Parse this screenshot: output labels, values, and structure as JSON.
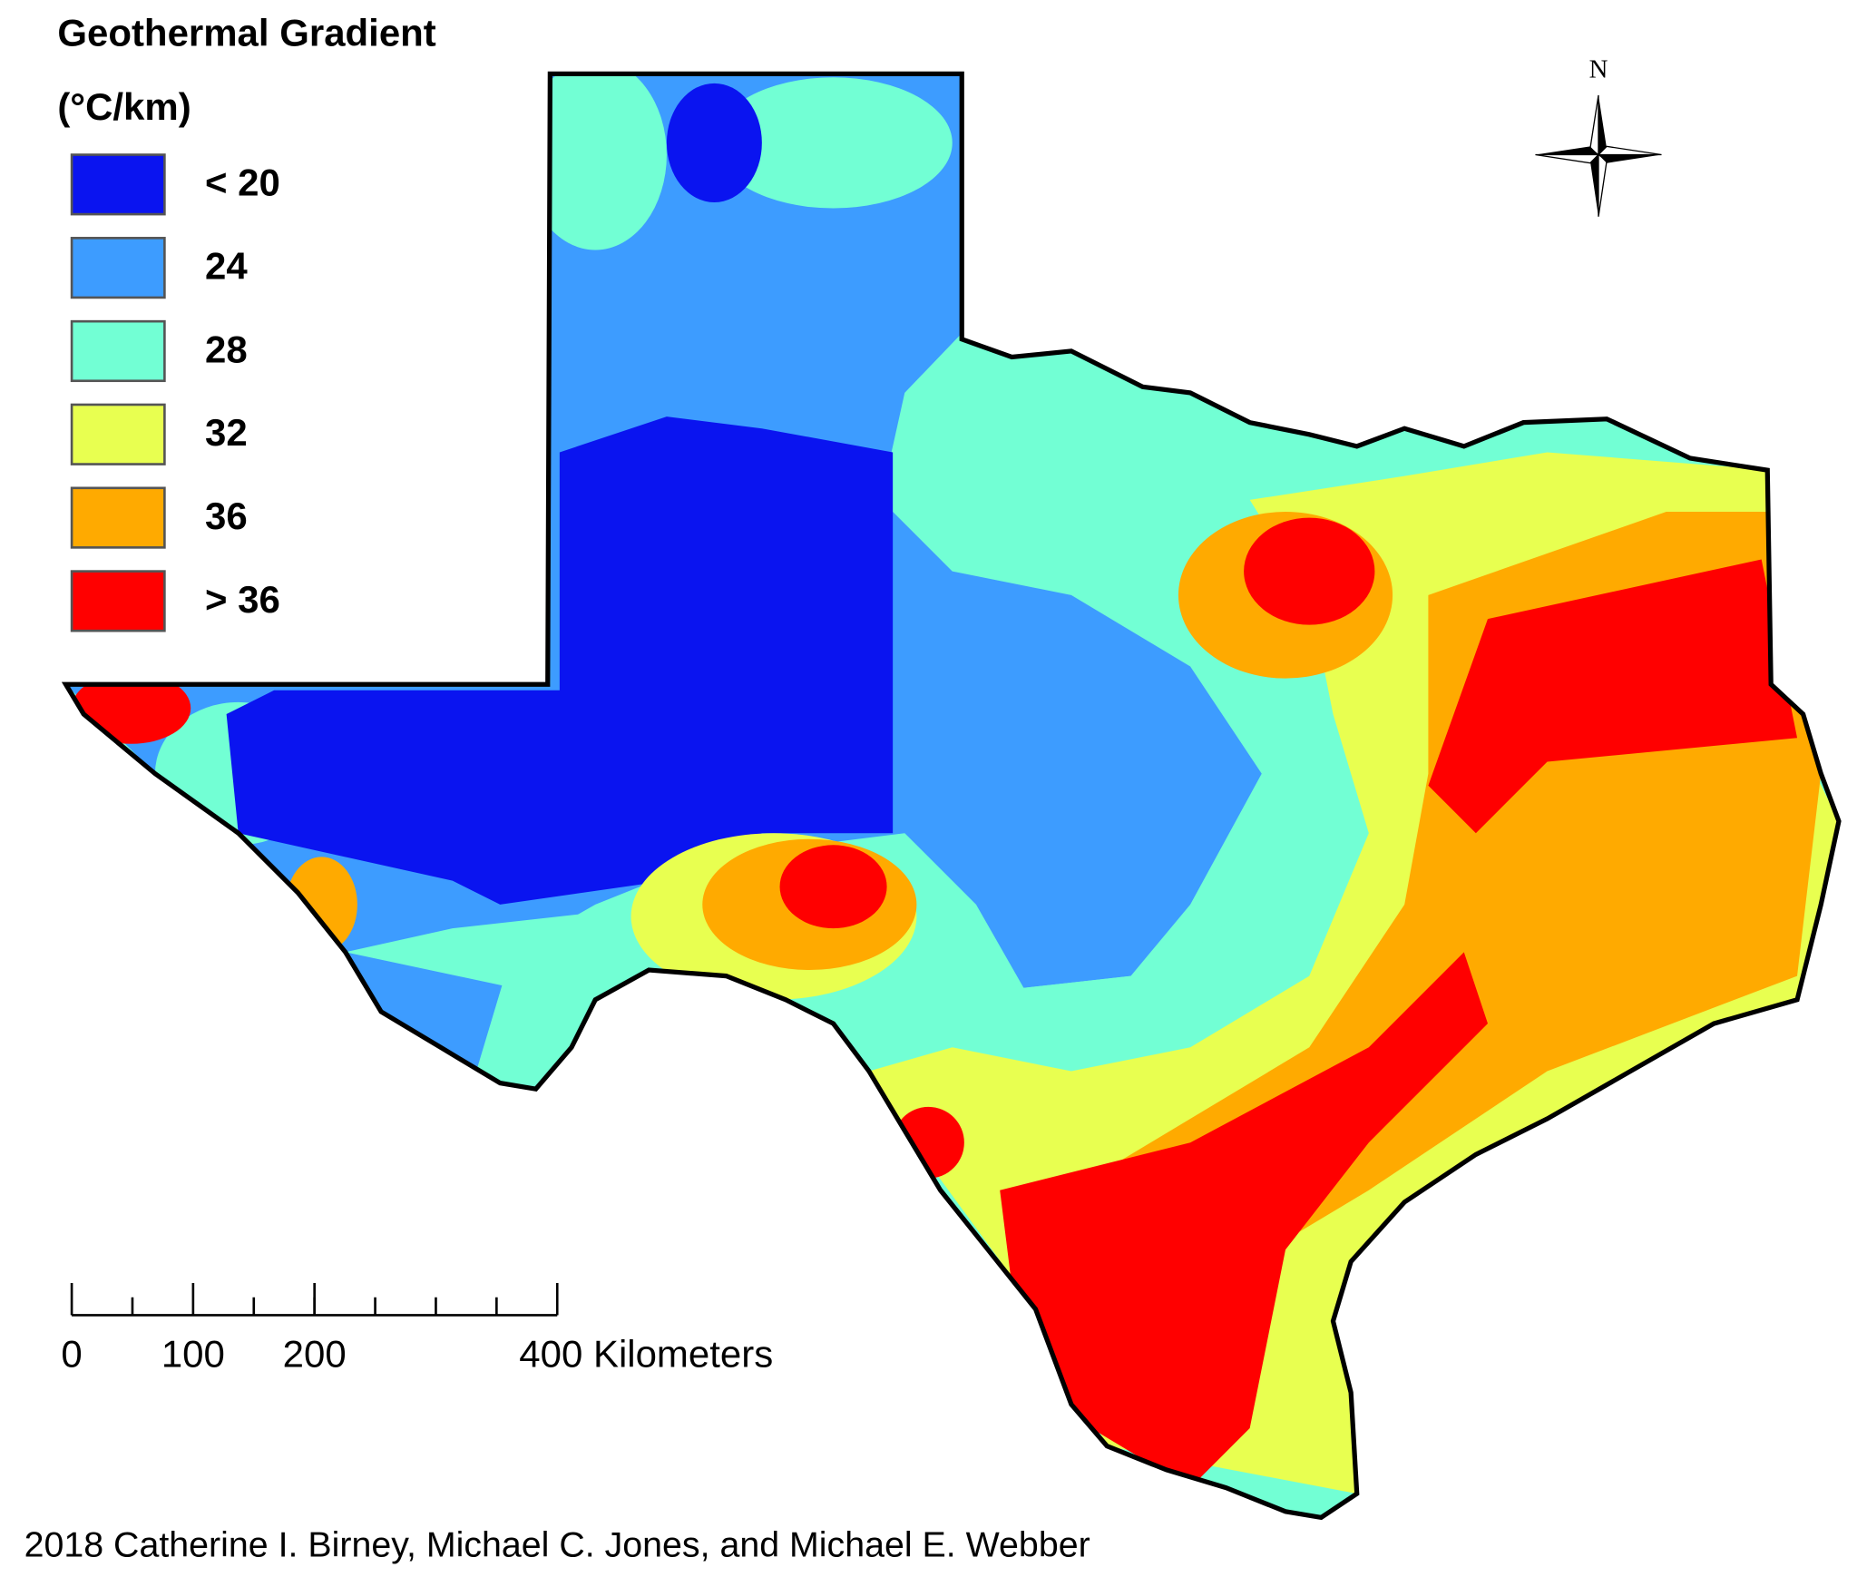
{
  "title": "Geothermal Gradient",
  "units": "(°C/km)",
  "legend": [
    {
      "label": "< 20",
      "color": "#0a14f0"
    },
    {
      "label": "24",
      "color": "#3d9cff"
    },
    {
      "label": "28",
      "color": "#72ffd4"
    },
    {
      "label": "32",
      "color": "#e8ff50"
    },
    {
      "label": "36",
      "color": "#ffaa00"
    },
    {
      "label": "> 36",
      "color": "#ff0000"
    }
  ],
  "north_label": "N",
  "scale_bar": {
    "max": 400,
    "ticks": [
      0,
      100,
      200,
      {
        "value": 400,
        "label": "400 Kilometers"
      }
    ]
  },
  "credit": "2018 Catherine I. Birney, Michael C. Jones, and Michael E. Webber"
}
